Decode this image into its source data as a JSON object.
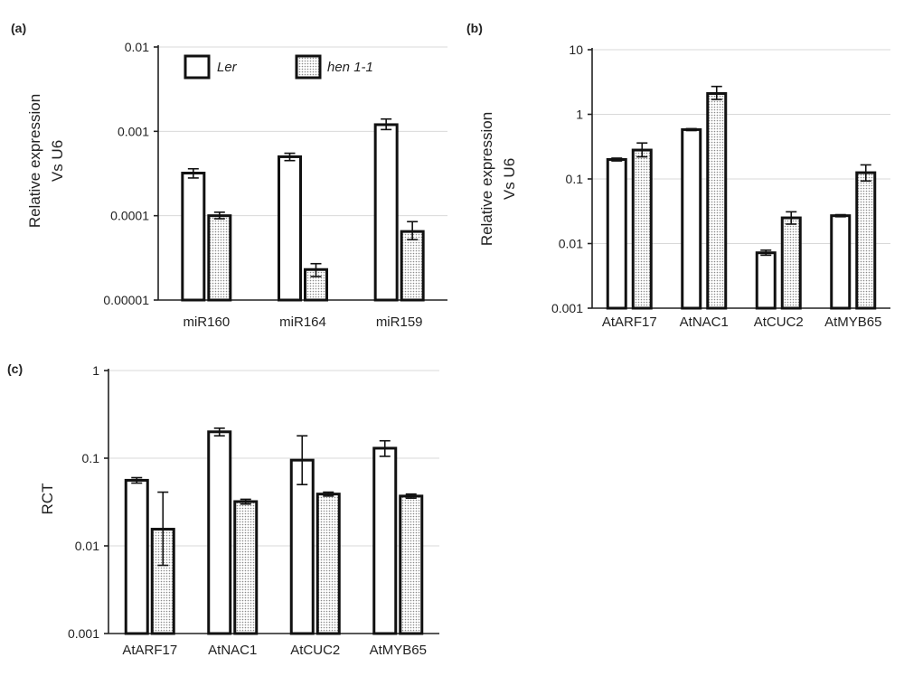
{
  "colors": {
    "axis": "#222222",
    "grid": "#d9d9d9",
    "bar_outline": "#111111",
    "open_fill": "#ffffff",
    "dot_fill": "#9a9a9a"
  },
  "chart_data": [
    {
      "panel_label": "(a)",
      "type": "bar",
      "scale": "log",
      "categories": [
        "miR160",
        "miR164",
        "miR159"
      ],
      "ylim": [
        1e-05,
        0.01
      ],
      "yticks": [
        1e-05,
        0.0001,
        0.001,
        0.01
      ],
      "ytick_labels": [
        "0.00001",
        "0.0001",
        "0.001",
        "0.01"
      ],
      "ylabel": [
        "Relative expression",
        "Vs U6"
      ],
      "xlabel": "",
      "grid": true,
      "legend": {
        "placement": "top",
        "entries": [
          "Ler",
          "hen 1-1"
        ]
      },
      "series": [
        {
          "name": "Ler",
          "style": "open",
          "values": [
            0.00032,
            0.0005,
            0.0012
          ],
          "err": [
            [
              0.00028,
              0.00036
            ],
            [
              0.00045,
              0.00055
            ],
            [
              0.00105,
              0.0014
            ]
          ]
        },
        {
          "name": "hen 1-1",
          "style": "dotted",
          "values": [
            0.0001,
            2.3e-05,
            6.5e-05
          ],
          "err": [
            [
              9.2e-05,
              0.00011
            ],
            [
              1.9e-05,
              2.7e-05
            ],
            [
              5.2e-05,
              8.5e-05
            ]
          ]
        }
      ]
    },
    {
      "panel_label": "(b)",
      "type": "bar",
      "scale": "log",
      "categories": [
        "AtARF17",
        "AtNAC1",
        "AtCUC2",
        "AtMYB65"
      ],
      "ylim": [
        0.001,
        10
      ],
      "yticks": [
        0.001,
        0.01,
        0.1,
        1,
        10
      ],
      "ytick_labels": [
        "0.001",
        "0.01",
        "0.1",
        "1",
        "10"
      ],
      "ylabel": [
        "Relative expression",
        "Vs U6"
      ],
      "xlabel": "",
      "grid": true,
      "series": [
        {
          "name": "Ler",
          "style": "open",
          "values": [
            0.2,
            0.58,
            0.0072,
            0.027
          ],
          "err": [
            [
              0.19,
              0.21
            ],
            [
              0.56,
              0.6
            ],
            [
              0.0066,
              0.0079
            ],
            [
              0.026,
              0.028
            ]
          ]
        },
        {
          "name": "hen 1-1",
          "style": "dotted",
          "values": [
            0.28,
            2.1,
            0.025,
            0.125
          ],
          "err": [
            [
              0.22,
              0.36
            ],
            [
              1.7,
              2.7
            ],
            [
              0.02,
              0.031
            ],
            [
              0.093,
              0.165
            ]
          ]
        }
      ]
    },
    {
      "panel_label": "(c)",
      "type": "bar",
      "scale": "log",
      "categories": [
        "AtARF17",
        "AtNAC1",
        "AtCUC2",
        "AtMYB65"
      ],
      "ylim": [
        0.001,
        1
      ],
      "yticks": [
        0.001,
        0.01,
        0.1,
        1
      ],
      "ytick_labels": [
        "0.001",
        "0.01",
        "0.1",
        "1"
      ],
      "ylabel": [
        "RCT"
      ],
      "xlabel": "",
      "grid": true,
      "series": [
        {
          "name": "Ler",
          "style": "open",
          "values": [
            0.056,
            0.2,
            0.095,
            0.13
          ],
          "err": [
            [
              0.052,
              0.06
            ],
            [
              0.18,
              0.22
            ],
            [
              0.05,
              0.18
            ],
            [
              0.105,
              0.158
            ]
          ]
        },
        {
          "name": "hen 1-1",
          "style": "dotted",
          "values": [
            0.0155,
            0.032,
            0.039,
            0.037
          ],
          "err": [
            [
              0.006,
              0.041
            ],
            [
              0.03,
              0.034
            ],
            [
              0.037,
              0.041
            ],
            [
              0.035,
              0.039
            ]
          ]
        }
      ]
    }
  ]
}
